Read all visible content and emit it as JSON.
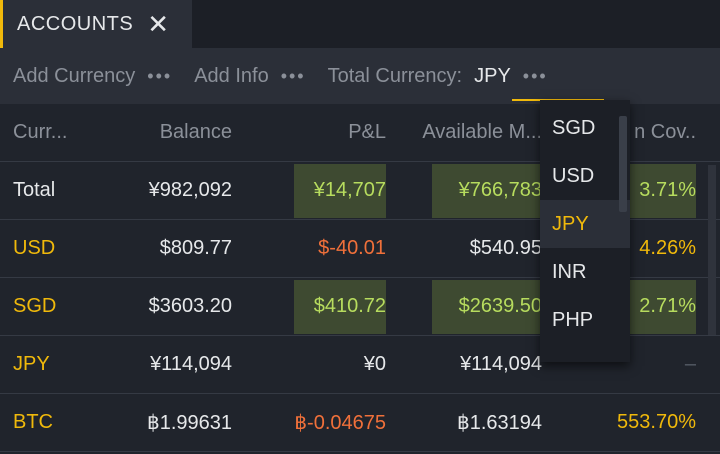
{
  "tab": {
    "label": "ACCOUNTS",
    "close": "✕"
  },
  "toolbar": {
    "add_currency": "Add Currency",
    "add_info": "Add Info",
    "total_currency_label": "Total Currency:",
    "total_currency_value": "JPY",
    "dots": "•••"
  },
  "table": {
    "headers": [
      "Curr...",
      "Balance",
      "P&L",
      "Available M...",
      "n Cov.."
    ],
    "rows": [
      {
        "name": "Total",
        "balance": "¥982,092",
        "pnl": "¥14,707",
        "available": "¥766,783",
        "coverage": "3.71%"
      },
      {
        "name": "USD",
        "balance": "$809.77",
        "pnl": "$-40.01",
        "available": "$540.95",
        "coverage": "4.26%"
      },
      {
        "name": "SGD",
        "balance": "$3603.20",
        "pnl": "$410.72",
        "available": "$2639.50",
        "coverage": "2.71%"
      },
      {
        "name": "JPY",
        "balance": "¥114,094",
        "pnl": "¥0",
        "available": "¥114,094",
        "coverage": "–"
      },
      {
        "name": "BTC",
        "balance": "฿1.99631",
        "pnl": "฿-0.04675",
        "available": "฿1.63194",
        "coverage": "553.70%"
      }
    ]
  },
  "dropdown": {
    "options": [
      "SGD",
      "USD",
      "JPY",
      "INR",
      "PHP"
    ],
    "selected": "JPY"
  },
  "colors": {
    "accent": "#f0b90b",
    "positive": "#b7dc5e",
    "negative": "#f0703a",
    "positive_highlight": "#3e4a31"
  }
}
